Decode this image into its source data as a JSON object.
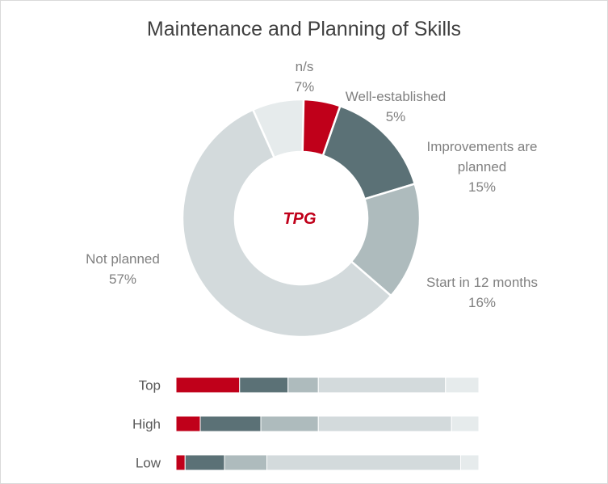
{
  "chart_data": [
    {
      "type": "pie",
      "title": "Maintenance and Planning of Skills",
      "center_label": "TPG",
      "slices": [
        {
          "name": "n/s",
          "label_lines": [
            "n/s"
          ],
          "value": 7,
          "value_label": "7%",
          "color": "#e6ebec"
        },
        {
          "name": "Well-established",
          "label_lines": [
            "Well-established"
          ],
          "value": 5,
          "value_label": "5%",
          "color": "#c0001a"
        },
        {
          "name": "Improvements are planned",
          "label_lines": [
            "Improvements are",
            "planned"
          ],
          "value": 15,
          "value_label": "15%",
          "color": "#5b7176"
        },
        {
          "name": "Start in 12 months",
          "label_lines": [
            "Start in 12 months"
          ],
          "value": 16,
          "value_label": "16%",
          "color": "#aebbbd"
        },
        {
          "name": "Not planned",
          "label_lines": [
            "Not planned"
          ],
          "value": 57,
          "value_label": "57%",
          "color": "#d3dadc"
        }
      ]
    },
    {
      "type": "bar",
      "orientation": "horizontal",
      "stacked": true,
      "percent": true,
      "categories": [
        "Top",
        "High",
        "Low"
      ],
      "series": [
        {
          "key": "Well-established",
          "color": "#c0001a",
          "values": [
            21,
            8,
            3
          ]
        },
        {
          "key": "Improvements are planned",
          "color": "#5b7176",
          "values": [
            16,
            20,
            13
          ]
        },
        {
          "key": "Start in 12 months",
          "color": "#aebbbd",
          "values": [
            10,
            19,
            14
          ]
        },
        {
          "key": "Not planned",
          "color": "#d3dadc",
          "values": [
            42,
            44,
            64
          ]
        },
        {
          "key": "n/s",
          "color": "#e6ebec",
          "values": [
            11,
            9,
            6
          ]
        }
      ],
      "xlim": [
        0,
        100
      ],
      "grid": false,
      "legend": "none"
    }
  ]
}
